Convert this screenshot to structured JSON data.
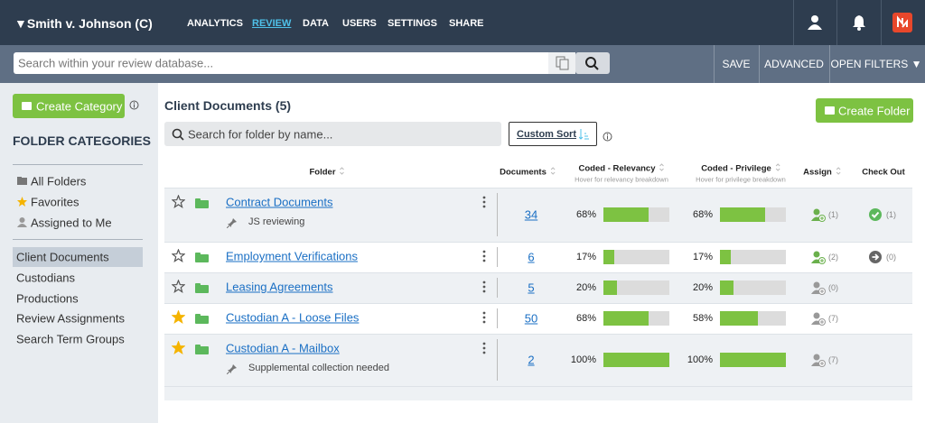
{
  "header": {
    "case": "▼Smith v. Johnson (C)",
    "nav": [
      "ANALYTICS",
      "REVIEW",
      "DATA",
      "USERS",
      "SETTINGS",
      "SHARE"
    ],
    "active_nav": 1
  },
  "search": {
    "placeholder": "Search within your review database...",
    "buttons": [
      "SAVE",
      "ADVANCED",
      "OPEN FILTERS ▼"
    ]
  },
  "sidebar": {
    "create": "Create Category",
    "heading": "FOLDER CATEGORIES",
    "quick": [
      "All Folders",
      "Favorites",
      "Assigned to Me"
    ],
    "categories": [
      "Client Documents",
      "Custodians",
      "Productions",
      "Review Assignments",
      "Search Term Groups"
    ],
    "selected": 0
  },
  "main": {
    "title": "Client Documents (5)",
    "create": "Create Folder",
    "folder_search": "Search for folder by name...",
    "custom_sort": "Custom Sort",
    "columns": [
      "Folder",
      "Documents",
      "Coded - Relevancy",
      "Coded - Privilege",
      "Assign",
      "Check Out"
    ],
    "hints": {
      "relevancy": "Hover for relevancy breakdown",
      "privilege": "Hover for privilege breakdown"
    },
    "rows": [
      {
        "name": "Contract Documents",
        "note": "JS reviewing",
        "favorite": false,
        "documents": "34",
        "relevancy": {
          "value": 68,
          "label": "68%"
        },
        "privilege": {
          "value": 68,
          "label": "68%"
        },
        "assign": "(1)",
        "assigned": true,
        "checkout": "(1)",
        "checked_in": true
      },
      {
        "name": "Employment Verifications",
        "favorite": false,
        "documents": "6",
        "relevancy": {
          "value": 17,
          "label": "17%"
        },
        "privilege": {
          "value": 17,
          "label": "17%"
        },
        "assign": "(2)",
        "assigned": true,
        "checkout": "(0)",
        "checked_in": false
      },
      {
        "name": "Leasing Agreements",
        "favorite": false,
        "documents": "5",
        "relevancy": {
          "value": 20,
          "label": "20%"
        },
        "privilege": {
          "value": 20,
          "label": "20%"
        },
        "assign": "(0)",
        "assigned": false
      },
      {
        "name": "Custodian A - Loose Files",
        "favorite": true,
        "documents": "50",
        "relevancy": {
          "value": 68,
          "label": "68%"
        },
        "privilege": {
          "value": 58,
          "label": "58%"
        },
        "assign": "(7)",
        "assigned": false
      },
      {
        "name": "Custodian A - Mailbox",
        "note": "Supplemental collection needed",
        "favorite": true,
        "documents": "2",
        "relevancy": {
          "value": 100,
          "label": "100%"
        },
        "privilege": {
          "value": 100,
          "label": "100%"
        },
        "assign": "(7)",
        "assigned": false
      }
    ]
  }
}
